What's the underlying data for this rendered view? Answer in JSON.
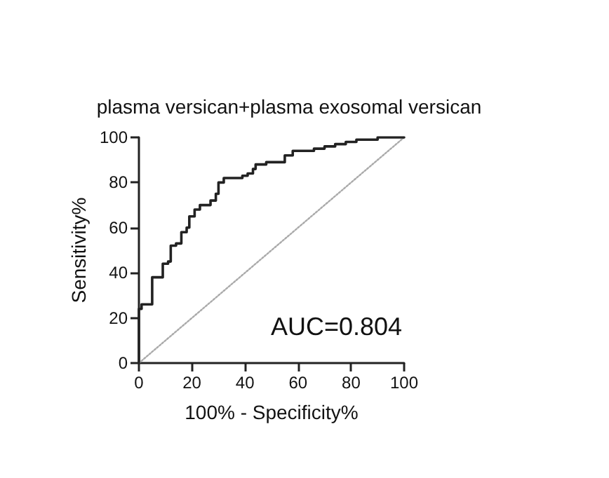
{
  "chart_data": {
    "type": "line",
    "title": "plasma versican+plasma exosomal versican",
    "xlabel": "100% - Specificity%",
    "ylabel": "Sensitivity%",
    "annotations": [
      "AUC=0.804"
    ],
    "series": [
      {
        "color": "#222222",
        "line_style": "solid",
        "x": [
          0,
          0,
          1,
          1,
          5,
          5,
          9,
          9,
          11,
          11,
          12,
          12,
          14,
          14,
          16,
          16,
          18,
          18,
          19,
          19,
          21,
          21,
          23,
          23,
          27,
          27,
          29,
          29,
          30,
          30,
          32,
          32,
          39,
          39,
          41,
          41,
          43,
          43,
          44,
          44,
          48,
          48,
          55,
          55,
          58,
          58,
          66,
          66,
          70,
          70,
          74,
          74,
          78,
          78,
          82,
          82,
          90,
          90,
          100
        ],
        "values": [
          0,
          24,
          24,
          26,
          26,
          38,
          38,
          44,
          44,
          45,
          45,
          52,
          52,
          53,
          53,
          58,
          58,
          60,
          60,
          65,
          65,
          68,
          68,
          70,
          70,
          72,
          72,
          75,
          75,
          80,
          80,
          82,
          82,
          83,
          83,
          84,
          84,
          86,
          86,
          88,
          88,
          89,
          89,
          92,
          92,
          94,
          94,
          95,
          95,
          96,
          96,
          97,
          97,
          98,
          98,
          99,
          99,
          100,
          100
        ]
      },
      {
        "color": "#aaaaaa",
        "line_style": "dotted",
        "x": [
          0,
          100
        ],
        "values": [
          0,
          100
        ]
      }
    ],
    "xlim": [
      0,
      100
    ],
    "xticks": [
      0,
      20,
      40,
      60,
      80,
      100
    ],
    "ylim": [
      0,
      100
    ],
    "yticks": [
      0,
      20,
      40,
      60,
      80,
      100
    ],
    "grid": false,
    "marker": "none"
  }
}
